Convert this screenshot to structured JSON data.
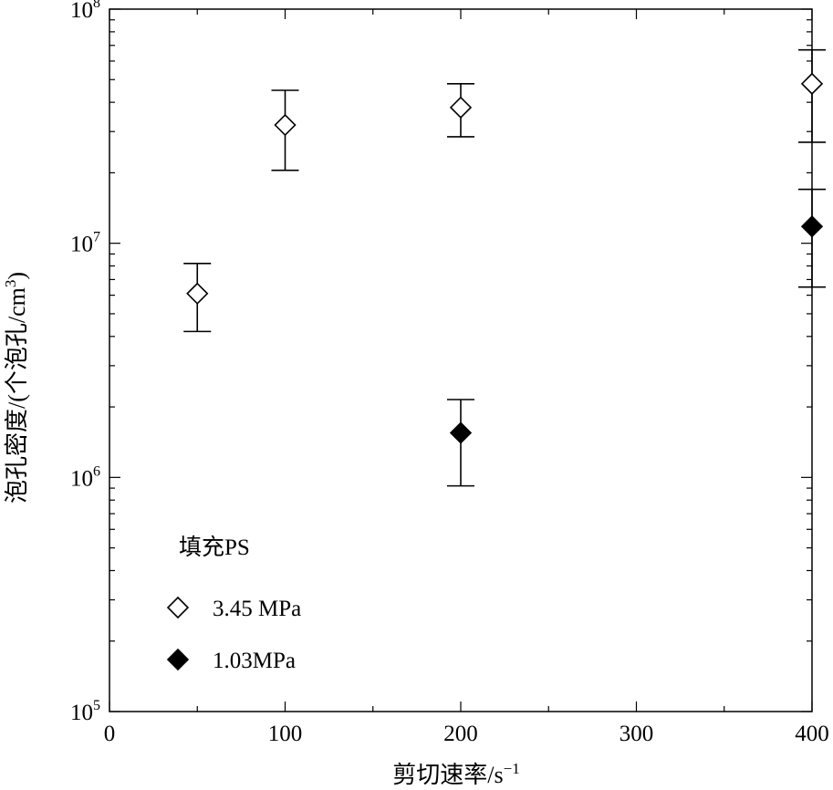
{
  "chart_data": {
    "type": "scatter",
    "xlabel": "剪切速率/s",
    "xlabel_sup": "−1",
    "ylabel": "泡孔密度/(个泡孔/cm",
    "ylabel_sup": "3",
    "ylabel_end": ")",
    "x_scale": "linear",
    "y_scale": "log",
    "xlim": [
      0,
      400
    ],
    "ylim": [
      100000,
      100000000
    ],
    "x_ticks": [
      {
        "value": 0,
        "label": "0"
      },
      {
        "value": 100,
        "label": "100"
      },
      {
        "value": 200,
        "label": "200"
      },
      {
        "value": 300,
        "label": "300"
      },
      {
        "value": 400,
        "label": "400"
      }
    ],
    "y_ticks": [
      {
        "value": 100000,
        "base": "10",
        "exp": "5"
      },
      {
        "value": 1000000,
        "base": "10",
        "exp": "6"
      },
      {
        "value": 10000000,
        "base": "10",
        "exp": "7"
      },
      {
        "value": 100000000,
        "base": "10",
        "exp": "8"
      }
    ],
    "grid": false,
    "legend": {
      "title": "填充PS",
      "position": "lower-left"
    },
    "series": [
      {
        "name": "3.45 MPa",
        "marker": "open-diamond",
        "color": "#000000",
        "points": [
          {
            "x": 50,
            "y": 6100000,
            "err_low": 4200000,
            "err_high": 8200000
          },
          {
            "x": 100,
            "y": 32000000,
            "err_low": 20500000,
            "err_high": 45000000
          },
          {
            "x": 200,
            "y": 38000000,
            "err_low": 28500000,
            "err_high": 48000000
          },
          {
            "x": 400,
            "y": 48000000,
            "err_low": 27000000,
            "err_high": 67000000
          }
        ]
      },
      {
        "name": "1.03MPa",
        "marker": "filled-diamond",
        "color": "#000000",
        "points": [
          {
            "x": 200,
            "y": 1550000,
            "err_low": 920000,
            "err_high": 2150000
          },
          {
            "x": 400,
            "y": 11800000,
            "err_low": 6500000,
            "err_high": 17000000
          }
        ]
      }
    ]
  }
}
